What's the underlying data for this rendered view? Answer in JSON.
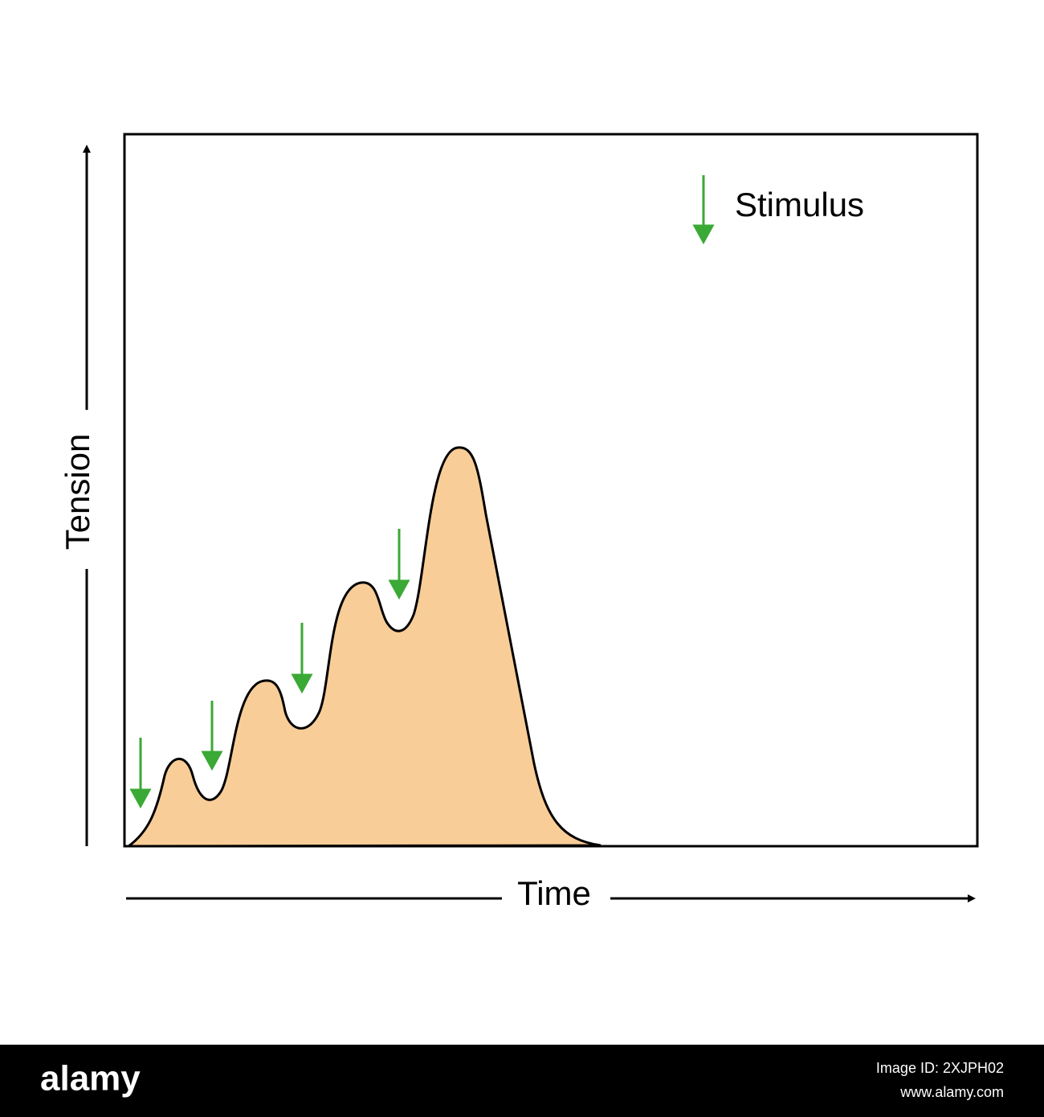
{
  "axes": {
    "y_label": "Tension",
    "x_label": "Time"
  },
  "legend": {
    "label": "Stimulus"
  },
  "footer": {
    "brand": "alamy",
    "image_id": "Image ID: 2XJPH02",
    "url": "www.alamy.com"
  }
}
